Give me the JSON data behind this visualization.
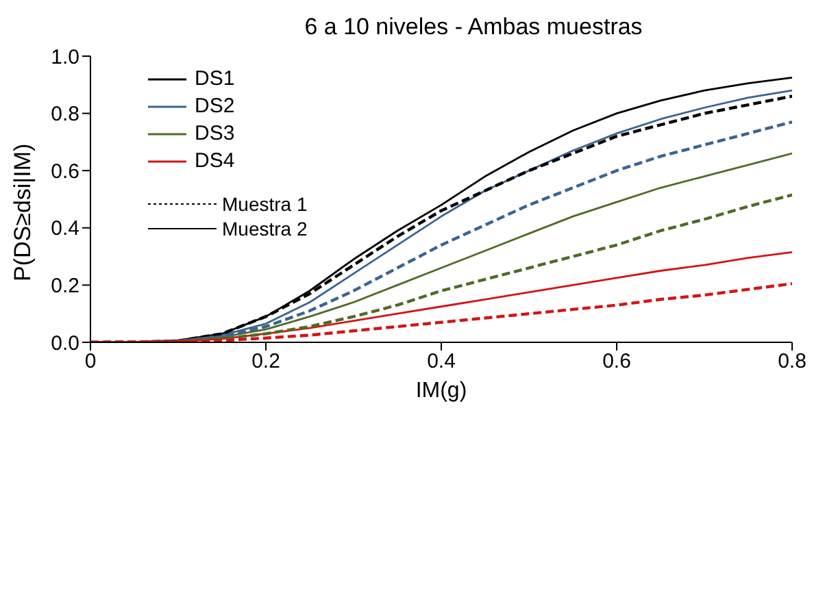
{
  "chart_data": {
    "type": "line",
    "title": "6 a 10 niveles - Ambas muestras",
    "xlabel": "IM(g)",
    "ylabel": "P(DS≥dsi|IM)",
    "x": [
      0,
      0.05,
      0.1,
      0.15,
      0.2,
      0.25,
      0.3,
      0.35,
      0.4,
      0.45,
      0.5,
      0.55,
      0.6,
      0.65,
      0.7,
      0.75,
      0.8
    ],
    "series": [
      {
        "name": "DS1",
        "color": "#000000",
        "line_style": "solid",
        "values": [
          0,
          0.001,
          0.007,
          0.03,
          0.09,
          0.18,
          0.29,
          0.39,
          0.48,
          0.58,
          0.665,
          0.74,
          0.8,
          0.845,
          0.88,
          0.905,
          0.925
        ]
      },
      {
        "name": "DS2",
        "color": "#3b6491",
        "line_style": "solid",
        "values": [
          0,
          0.001,
          0.005,
          0.025,
          0.065,
          0.14,
          0.24,
          0.34,
          0.44,
          0.53,
          0.6,
          0.67,
          0.73,
          0.78,
          0.82,
          0.855,
          0.88
        ]
      },
      {
        "name": "DS3",
        "color": "#4f6a28",
        "line_style": "solid",
        "values": [
          0,
          0.001,
          0.004,
          0.018,
          0.045,
          0.09,
          0.14,
          0.2,
          0.26,
          0.32,
          0.38,
          0.44,
          0.49,
          0.54,
          0.58,
          0.62,
          0.66
        ]
      },
      {
        "name": "DS4",
        "color": "#d41414",
        "line_style": "solid",
        "values": [
          0,
          0.001,
          0.003,
          0.012,
          0.03,
          0.05,
          0.075,
          0.1,
          0.125,
          0.15,
          0.175,
          0.2,
          0.225,
          0.25,
          0.27,
          0.295,
          0.315
        ]
      },
      {
        "color": "#000000",
        "line_style": "dashed",
        "values": [
          0,
          0.001,
          0.005,
          0.03,
          0.09,
          0.17,
          0.27,
          0.37,
          0.46,
          0.53,
          0.6,
          0.66,
          0.72,
          0.76,
          0.8,
          0.83,
          0.86
        ]
      },
      {
        "color": "#3b6491",
        "line_style": "dashed",
        "values": [
          0,
          0.001,
          0.004,
          0.02,
          0.055,
          0.11,
          0.18,
          0.26,
          0.34,
          0.41,
          0.48,
          0.54,
          0.6,
          0.65,
          0.69,
          0.73,
          0.77
        ]
      },
      {
        "color": "#4f6a28",
        "line_style": "dashed",
        "values": [
          0,
          0.001,
          0.003,
          0.012,
          0.03,
          0.055,
          0.09,
          0.13,
          0.18,
          0.22,
          0.26,
          0.3,
          0.34,
          0.39,
          0.43,
          0.475,
          0.515
        ]
      },
      {
        "color": "#d41414",
        "line_style": "dashed",
        "values": [
          0,
          0.001,
          0.002,
          0.006,
          0.015,
          0.025,
          0.04,
          0.055,
          0.07,
          0.085,
          0.1,
          0.115,
          0.13,
          0.15,
          0.165,
          0.185,
          0.205
        ]
      }
    ],
    "annotations": [
      "Muestra 1",
      "Muestra 2"
    ],
    "xlim": [
      0,
      0.8
    ],
    "xticks": [
      0,
      0.2,
      0.4,
      0.6,
      0.8
    ],
    "ylim": [
      0,
      1
    ],
    "yticks": [
      {
        "value": 0,
        "label": "0.0"
      },
      {
        "value": 0.2,
        "label": "0.2"
      },
      {
        "value": 0.4,
        "label": "0.4"
      },
      {
        "value": 0.6,
        "label": "0.6"
      },
      {
        "value": 0.8,
        "label": "0.8"
      },
      {
        "value": 1,
        "label": "1.0"
      }
    ],
    "grid": false,
    "legend": "top left",
    "marker": "none"
  }
}
